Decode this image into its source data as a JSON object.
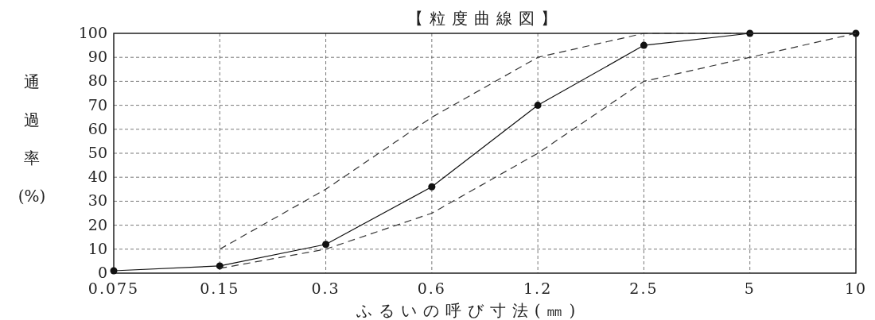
{
  "chart_data": {
    "type": "line",
    "title": "【粒度曲線図】",
    "xlabel": "ふるいの呼び寸法(㎜)",
    "ylabel": "通過率(%)",
    "categories": [
      "0.075",
      "0.15",
      "0.3",
      "0.6",
      "1.2",
      "2.5",
      "5",
      "10"
    ],
    "series": [
      {
        "color": "#111111",
        "values": [
          1,
          3,
          12,
          36,
          70,
          95,
          100,
          100
        ],
        "marker": "circle",
        "line_style": "solid"
      },
      {
        "color": "#333333",
        "values": [
          null,
          10,
          35,
          65,
          90,
          100,
          100,
          100
        ],
        "marker": "none",
        "line_style": "dashed"
      },
      {
        "color": "#333333",
        "values": [
          null,
          2,
          10,
          25,
          50,
          80,
          90,
          100
        ],
        "marker": "none",
        "line_style": "dashed"
      }
    ],
    "ylim": [
      0,
      100
    ],
    "yticks": [
      0,
      10,
      20,
      30,
      40,
      50,
      60,
      70,
      80,
      90,
      100
    ],
    "grid": true
  }
}
